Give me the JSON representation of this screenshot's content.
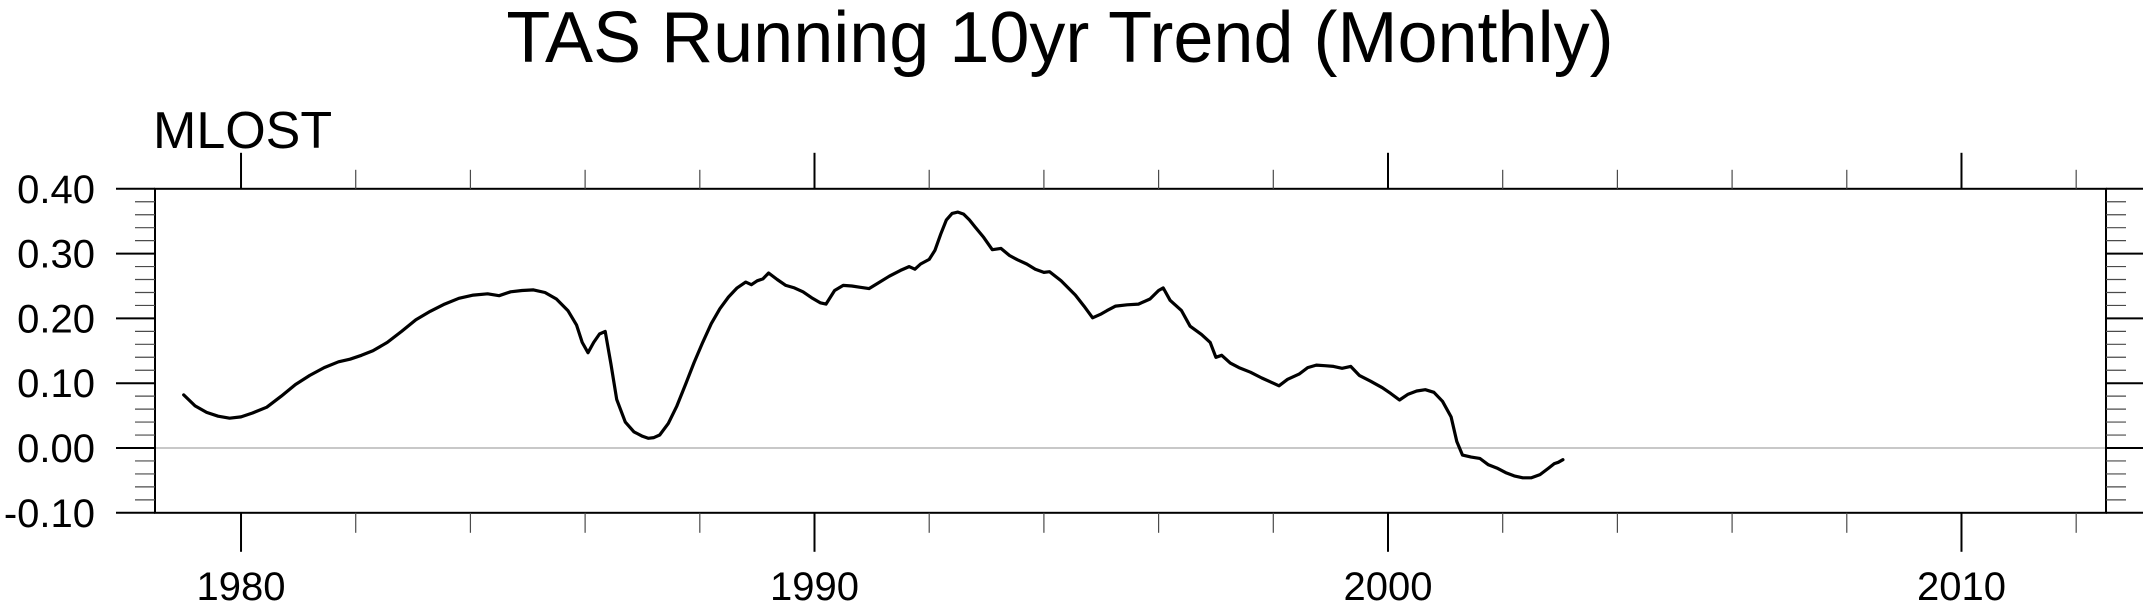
{
  "title": "TAS Running 10yr Trend (Monthly)",
  "panel_label": "MLOST",
  "colors": {
    "line": "#000000",
    "axis": "#000000",
    "minor_tick": "#4a4a4a",
    "zero_line": "#a8a8a8",
    "background": "#ffffff",
    "text": "#000000"
  },
  "chart_data": {
    "type": "line",
    "title": "TAS Running 10yr Trend (Monthly)",
    "panel_label": "MLOST",
    "xlabel": "",
    "ylabel": "",
    "xlim": [
      1978.5,
      2012.52
    ],
    "ylim": [
      -0.1,
      0.4
    ],
    "grid": "zero-line-only",
    "legend": "none",
    "x_major_ticks": [
      {
        "value": 1980,
        "label": "1980"
      },
      {
        "value": 1990,
        "label": "1990"
      },
      {
        "value": 2000,
        "label": "2000"
      },
      {
        "value": 2010,
        "label": "2010"
      }
    ],
    "x_minor_ticks": [
      1982,
      1984,
      1986,
      1988,
      1992,
      1994,
      1996,
      1998,
      2002,
      2004,
      2006,
      2008,
      2012
    ],
    "y_major_ticks": [
      {
        "value": 0.4,
        "label": "0.40"
      },
      {
        "value": 0.3,
        "label": "0.30"
      },
      {
        "value": 0.2,
        "label": "0.20"
      },
      {
        "value": 0.1,
        "label": "0.10"
      },
      {
        "value": 0.0,
        "label": "0.00"
      },
      {
        "value": -0.1,
        "label": "-0.10"
      }
    ],
    "y_minor_ticks": [
      -0.08,
      -0.06,
      -0.04,
      -0.02,
      0.02,
      0.04,
      0.06,
      0.08,
      0.12,
      0.14,
      0.16,
      0.18,
      0.22,
      0.24,
      0.26,
      0.28,
      0.32,
      0.34,
      0.36,
      0.38
    ],
    "zero_line": 0.0,
    "series": [
      {
        "name": "MLOST",
        "x": [
          1979.0,
          1979.2,
          1979.4,
          1979.6,
          1979.8,
          1980.0,
          1980.2,
          1980.45,
          1980.7,
          1980.95,
          1981.2,
          1981.45,
          1981.7,
          1981.9,
          1982.1,
          1982.3,
          1982.55,
          1982.8,
          1983.05,
          1983.3,
          1983.55,
          1983.8,
          1984.05,
          1984.3,
          1984.5,
          1984.7,
          1984.9,
          1985.1,
          1985.3,
          1985.5,
          1985.7,
          1985.85,
          1985.95,
          1986.05,
          1986.15,
          1986.25,
          1986.35,
          1986.45,
          1986.55,
          1986.7,
          1986.85,
          1987.0,
          1987.1,
          1987.2,
          1987.3,
          1987.45,
          1987.6,
          1987.75,
          1987.9,
          1988.05,
          1988.2,
          1988.35,
          1988.5,
          1988.65,
          1988.8,
          1988.9,
          1989.0,
          1989.1,
          1989.2,
          1989.35,
          1989.5,
          1989.65,
          1989.8,
          1989.95,
          1990.1,
          1990.2,
          1990.35,
          1990.5,
          1990.65,
          1990.8,
          1990.95,
          1991.1,
          1991.3,
          1991.5,
          1991.65,
          1991.75,
          1991.85,
          1992.0,
          1992.1,
          1992.2,
          1992.3,
          1992.4,
          1992.5,
          1992.6,
          1992.7,
          1992.8,
          1992.95,
          1993.1,
          1993.25,
          1993.4,
          1993.55,
          1993.7,
          1993.85,
          1994.0,
          1994.1,
          1994.3,
          1994.55,
          1994.7,
          1994.85,
          1995.0,
          1995.1,
          1995.25,
          1995.45,
          1995.65,
          1995.85,
          1996.0,
          1996.08,
          1996.2,
          1996.4,
          1996.55,
          1996.75,
          1996.9,
          1997.0,
          1997.1,
          1997.25,
          1997.4,
          1997.6,
          1997.8,
          1998.0,
          1998.1,
          1998.25,
          1998.45,
          1998.6,
          1998.75,
          1998.9,
          1999.05,
          1999.2,
          1999.35,
          1999.5,
          1999.7,
          1999.9,
          2000.05,
          2000.2,
          2000.35,
          2000.5,
          2000.65,
          2000.8,
          2000.95,
          2001.1,
          2001.2,
          2001.3,
          2001.45,
          2001.6,
          2001.75,
          2001.9,
          2002.05,
          2002.2,
          2002.35,
          2002.5,
          2002.65,
          2002.8,
          2002.9,
          2002.97,
          2003.05
        ],
        "y": [
          0.082,
          0.065,
          0.055,
          0.049,
          0.046,
          0.048,
          0.054,
          0.063,
          0.08,
          0.098,
          0.112,
          0.124,
          0.133,
          0.137,
          0.143,
          0.15,
          0.163,
          0.18,
          0.198,
          0.211,
          0.222,
          0.231,
          0.236,
          0.238,
          0.235,
          0.241,
          0.243,
          0.244,
          0.24,
          0.23,
          0.212,
          0.19,
          0.163,
          0.147,
          0.163,
          0.176,
          0.18,
          0.13,
          0.075,
          0.04,
          0.025,
          0.018,
          0.015,
          0.016,
          0.02,
          0.038,
          0.065,
          0.098,
          0.132,
          0.163,
          0.192,
          0.215,
          0.233,
          0.247,
          0.256,
          0.252,
          0.258,
          0.261,
          0.27,
          0.26,
          0.251,
          0.247,
          0.241,
          0.232,
          0.224,
          0.222,
          0.243,
          0.251,
          0.25,
          0.248,
          0.246,
          0.254,
          0.265,
          0.274,
          0.28,
          0.276,
          0.284,
          0.291,
          0.305,
          0.33,
          0.352,
          0.362,
          0.364,
          0.361,
          0.352,
          0.341,
          0.325,
          0.306,
          0.308,
          0.297,
          0.29,
          0.284,
          0.276,
          0.271,
          0.272,
          0.258,
          0.236,
          0.219,
          0.201,
          0.207,
          0.212,
          0.219,
          0.221,
          0.222,
          0.23,
          0.243,
          0.247,
          0.228,
          0.212,
          0.188,
          0.175,
          0.163,
          0.14,
          0.143,
          0.131,
          0.124,
          0.117,
          0.108,
          0.1,
          0.096,
          0.106,
          0.114,
          0.124,
          0.128,
          0.127,
          0.126,
          0.123,
          0.126,
          0.112,
          0.103,
          0.093,
          0.084,
          0.074,
          0.083,
          0.088,
          0.09,
          0.086,
          0.072,
          0.048,
          0.01,
          -0.011,
          -0.014,
          -0.016,
          -0.026,
          -0.031,
          -0.038,
          -0.043,
          -0.046,
          -0.046,
          -0.041,
          -0.031,
          -0.024,
          -0.022,
          -0.018
        ]
      }
    ]
  }
}
